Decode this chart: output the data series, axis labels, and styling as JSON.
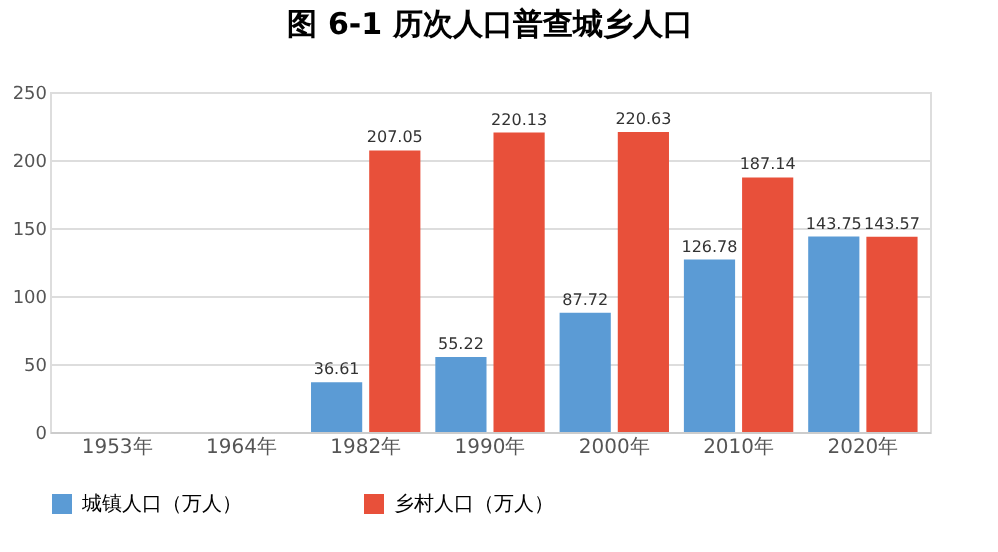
{
  "chart_data": {
    "type": "bar",
    "title": "图 6-1 历次人口普查城乡人口",
    "categories": [
      "1953年",
      "1964年",
      "1982年",
      "1990年",
      "2000年",
      "2010年",
      "2020年"
    ],
    "series": [
      {
        "name": "城镇人口（万人）",
        "color": "#5b9bd5",
        "values": [
          null,
          null,
          36.61,
          55.22,
          87.72,
          126.78,
          143.75
        ]
      },
      {
        "name": "乡村人口（万人）",
        "color": "#e8503a",
        "values": [
          null,
          null,
          207.05,
          220.13,
          220.63,
          187.14,
          143.57
        ]
      }
    ],
    "ylim": [
      0,
      250
    ],
    "yticks": [
      0,
      50,
      100,
      150,
      200,
      250
    ],
    "grid": "y",
    "legend": "bottom",
    "data_labels": true
  }
}
